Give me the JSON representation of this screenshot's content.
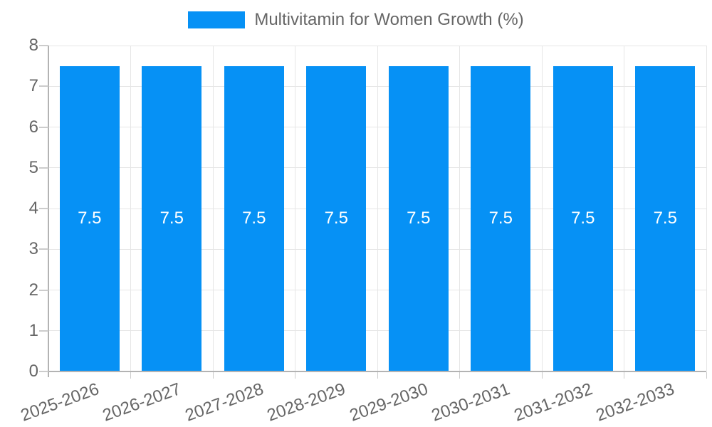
{
  "legend": {
    "swatch_icon": "legend-color-swatch"
  },
  "chart_data": {
    "type": "bar",
    "title": "Multivitamin for Women Growth (%)",
    "categories": [
      "2025-2026",
      "2026-2027",
      "2027-2028",
      "2028-2029",
      "2029-2030",
      "2030-2031",
      "2031-2032",
      "2032-2033"
    ],
    "values": [
      7.5,
      7.5,
      7.5,
      7.5,
      7.5,
      7.5,
      7.5,
      7.5
    ],
    "bar_value_labels": [
      "7.5",
      "7.5",
      "7.5",
      "7.5",
      "7.5",
      "7.5",
      "7.5",
      "7.5"
    ],
    "xlabel": "",
    "ylabel": "",
    "ylim": [
      0,
      8
    ],
    "yticks": [
      0,
      1,
      2,
      3,
      4,
      5,
      6,
      7,
      8
    ],
    "grid": true,
    "legend_position": "top",
    "colors": {
      "bar": "#0691f5",
      "grid": "#e6e6e6",
      "axis": "#b3b3b3",
      "tick_mark": "#cccccc",
      "tick_text": "#666666",
      "value_label": "#ffffff"
    }
  }
}
